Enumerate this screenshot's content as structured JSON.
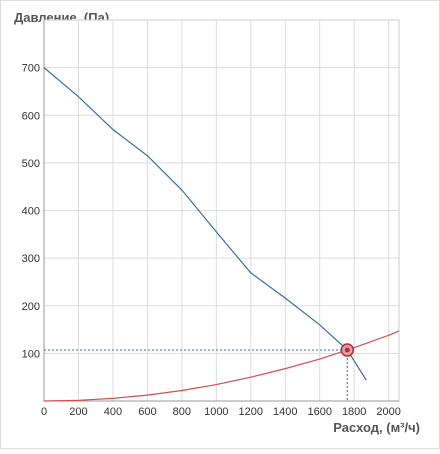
{
  "chart_data": {
    "type": "line",
    "title": "Давление, (Па)",
    "x_label": "Расход, (м³/ч)",
    "xlim": [
      0,
      2060
    ],
    "ylim": [
      0,
      800
    ],
    "xticks": [
      0,
      200,
      400,
      600,
      800,
      1000,
      1200,
      1400,
      1600,
      1800,
      2000
    ],
    "yticks": [
      100,
      200,
      300,
      400,
      500,
      600,
      700
    ],
    "grid": true,
    "series": [
      {
        "color": "#3a6fa8",
        "x": [
          0,
          200,
          400,
          600,
          800,
          1000,
          1200,
          1400,
          1600,
          1760,
          1870
        ],
        "values": [
          700,
          639,
          570,
          515,
          443,
          355,
          269,
          216,
          160,
          107,
          44
        ]
      },
      {
        "color": "#d05050",
        "x": [
          0,
          200,
          400,
          600,
          800,
          1000,
          1200,
          1400,
          1600,
          1800,
          2000,
          2060
        ],
        "values": [
          0,
          1.4,
          5.5,
          12.4,
          22,
          34.5,
          50,
          68,
          88,
          112,
          138,
          147
        ]
      }
    ],
    "operating_point": {
      "x": 1760,
      "y": 107,
      "color": "#b03040"
    }
  }
}
